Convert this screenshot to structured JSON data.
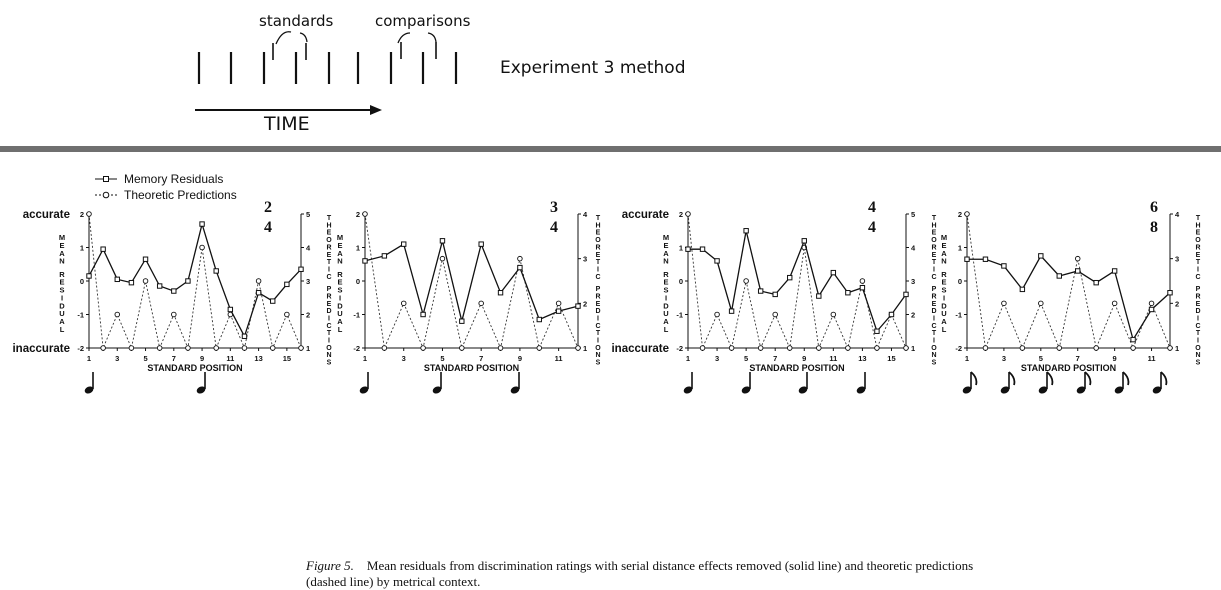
{
  "method_diagram": {
    "label_standards": "standards",
    "label_comparisons": "comparisons",
    "time_label": "TIME",
    "side_label": "Experiment 3 method"
  },
  "figure": {
    "legend": {
      "memory": "Memory Residuals",
      "theoretic": "Theoretic Predictions"
    },
    "left_axis_labels": {
      "top": "accurate",
      "bottom": "inaccurate"
    },
    "left_axis_title": "MEAN RESIDUAL",
    "right_axis_title": "THEORETIC PREDICTIONS",
    "x_axis_title": "STANDARD POSITION",
    "caption_label": "Figure 5.",
    "caption_text": "Mean residuals from discrimination ratings with serial distance effects removed (solid line) and theoretic predictions (dashed line) by metrical context."
  },
  "chart_data": [
    {
      "type": "line",
      "meter": [
        "2",
        "4"
      ],
      "x": [
        1,
        2,
        3,
        4,
        5,
        6,
        7,
        8,
        9,
        10,
        11,
        12,
        13,
        14,
        15,
        16
      ],
      "x_ticks": [
        "1",
        "3",
        "5",
        "7",
        "9",
        "11",
        "13",
        "15"
      ],
      "ylim": [
        -2,
        2
      ],
      "y_ticks": [
        "2",
        "1",
        "0",
        "-1",
        "-2"
      ],
      "y2lim": [
        1,
        5
      ],
      "y2_ticks": [
        "5",
        "4",
        "3",
        "2",
        "1"
      ],
      "series": [
        {
          "name": "Memory Residuals",
          "axis": "left",
          "values": [
            0.15,
            0.95,
            0.05,
            -0.05,
            0.65,
            -0.15,
            -0.3,
            0.0,
            1.7,
            0.3,
            -0.85,
            -1.65,
            -0.35,
            -0.6,
            -0.1,
            0.35
          ]
        },
        {
          "name": "Theoretic Predictions",
          "axis": "right",
          "values": [
            5,
            1,
            2,
            1,
            3,
            1,
            2,
            1,
            4,
            1,
            2,
            1,
            3,
            1,
            2,
            1
          ]
        }
      ],
      "note_symbols": [
        "quarter",
        "quarter"
      ]
    },
    {
      "type": "line",
      "meter": [
        "3",
        "4"
      ],
      "x": [
        1,
        2,
        3,
        4,
        5,
        6,
        7,
        8,
        9,
        10,
        11,
        12
      ],
      "x_ticks": [
        "1",
        "3",
        "5",
        "7",
        "9",
        "11"
      ],
      "ylim": [
        -2,
        2
      ],
      "y_ticks": [
        "2",
        "1",
        "0",
        "-1",
        "-2"
      ],
      "y2lim": [
        1,
        4
      ],
      "y2_ticks": [
        "4",
        "3",
        "2",
        "1"
      ],
      "series": [
        {
          "name": "Memory Residuals",
          "axis": "left",
          "values": [
            0.6,
            0.75,
            1.1,
            -1.0,
            1.2,
            -1.2,
            1.1,
            -0.35,
            0.4,
            -1.15,
            -0.9,
            -0.75
          ]
        },
        {
          "name": "Theoretic Predictions",
          "axis": "right",
          "values": [
            4,
            1,
            2,
            1,
            3,
            1,
            2,
            1,
            3,
            1,
            2,
            1
          ]
        }
      ],
      "note_symbols": [
        "quarter",
        "quarter",
        "quarter"
      ]
    },
    {
      "type": "line",
      "meter": [
        "4",
        "4"
      ],
      "x": [
        1,
        2,
        3,
        4,
        5,
        6,
        7,
        8,
        9,
        10,
        11,
        12,
        13,
        14,
        15,
        16
      ],
      "x_ticks": [
        "1",
        "3",
        "5",
        "7",
        "9",
        "11",
        "13",
        "15"
      ],
      "ylim": [
        -2,
        2
      ],
      "y_ticks": [
        "2",
        "1",
        "0",
        "-1",
        "-2"
      ],
      "y2lim": [
        1,
        5
      ],
      "y2_ticks": [
        "5",
        "4",
        "3",
        "2",
        "1"
      ],
      "series": [
        {
          "name": "Memory Residuals",
          "axis": "left",
          "values": [
            0.95,
            0.95,
            0.6,
            -0.9,
            1.5,
            -0.3,
            -0.4,
            0.1,
            1.2,
            -0.45,
            0.25,
            -0.35,
            -0.2,
            -1.5,
            -1.0,
            -0.4
          ]
        },
        {
          "name": "Theoretic Predictions",
          "axis": "right",
          "values": [
            5,
            1,
            2,
            1,
            3,
            1,
            2,
            1,
            4,
            1,
            2,
            1,
            3,
            1,
            2,
            1
          ]
        }
      ],
      "note_symbols": [
        "quarter",
        "quarter",
        "quarter",
        "quarter"
      ]
    },
    {
      "type": "line",
      "meter": [
        "6",
        "8"
      ],
      "x": [
        1,
        2,
        3,
        4,
        5,
        6,
        7,
        8,
        9,
        10,
        11,
        12
      ],
      "x_ticks": [
        "1",
        "3",
        "5",
        "7",
        "9",
        "11"
      ],
      "ylim": [
        -2,
        2
      ],
      "y_ticks": [
        "2",
        "1",
        "0",
        "-1",
        "-2"
      ],
      "y2lim": [
        1,
        4
      ],
      "y2_ticks": [
        "4",
        "3",
        "2",
        "1"
      ],
      "series": [
        {
          "name": "Memory Residuals",
          "axis": "left",
          "values": [
            0.65,
            0.65,
            0.45,
            -0.25,
            0.75,
            0.15,
            0.3,
            -0.05,
            0.3,
            -1.75,
            -0.85,
            -0.35
          ]
        },
        {
          "name": "Theoretic Predictions",
          "axis": "right",
          "values": [
            4,
            1,
            2,
            1,
            2,
            1,
            3,
            1,
            2,
            1,
            2,
            1
          ]
        }
      ],
      "note_symbols": [
        "eighth",
        "eighth",
        "eighth",
        "eighth",
        "eighth",
        "eighth"
      ]
    }
  ]
}
